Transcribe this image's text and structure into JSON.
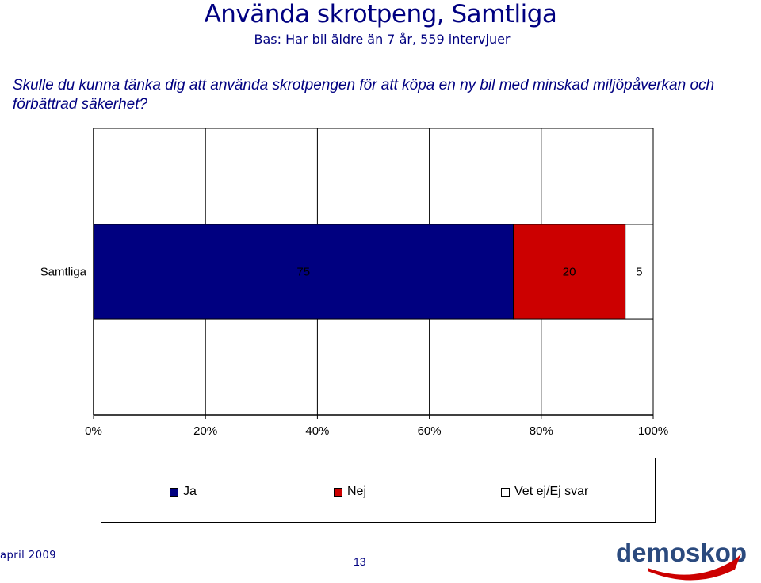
{
  "header": {
    "title": "Använda skrotpeng, Samtliga",
    "subtitle": "Bas: Har bil äldre än 7 år, 559 intervjuer",
    "question": "Skulle du kunna tänka dig att använda skrotpengen för att köpa en ny bil med minskad miljöpåverkan och förbättrad säkerhet?"
  },
  "chart_data": {
    "type": "bar",
    "orientation": "horizontal",
    "stacked": true,
    "percent": true,
    "categories": [
      "Samtliga"
    ],
    "series": [
      {
        "name": "Ja",
        "values": [
          75
        ],
        "color": "#000080"
      },
      {
        "name": "Nej",
        "values": [
          20
        ],
        "color": "#CC0000"
      },
      {
        "name": "Vet ej/Ej svar",
        "values": [
          5
        ],
        "color": "#FFFFFF"
      }
    ],
    "xlim": [
      0,
      100
    ],
    "xticks": [
      "0%",
      "20%",
      "40%",
      "60%",
      "80%",
      "100%"
    ],
    "grid": true,
    "legend_position": "bottom"
  },
  "footer": {
    "date": "april 2009",
    "page": "13",
    "logo_text": "demoskop"
  },
  "colors": {
    "text": "#000080",
    "logo": "#2b4a7e",
    "logo_swoosh": "#cc0000"
  }
}
